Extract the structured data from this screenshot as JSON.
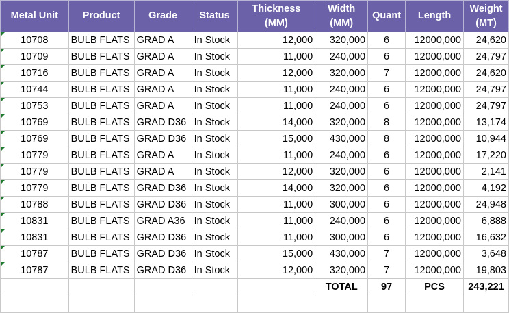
{
  "headers": {
    "metal_unit": "Metal Unit",
    "product": "Product",
    "grade": "Grade",
    "status": "Status",
    "thickness": "Thickness (MM)",
    "width": "Width (MM)",
    "quant": "Quant",
    "length": "Length",
    "weight": "Weight (MT)"
  },
  "rows": [
    {
      "unit": "10708",
      "product": "BULB FLATS",
      "grade": "GRAD A",
      "status": "In Stock",
      "thickness": "12,000",
      "width": "320,000",
      "quant": "6",
      "length": "12000,000",
      "weight": "24,620"
    },
    {
      "unit": "10709",
      "product": "BULB FLATS",
      "grade": "GRAD A",
      "status": "In Stock",
      "thickness": "11,000",
      "width": "240,000",
      "quant": "6",
      "length": "12000,000",
      "weight": "24,797"
    },
    {
      "unit": "10716",
      "product": "BULB FLATS",
      "grade": "GRAD A",
      "status": "In Stock",
      "thickness": "12,000",
      "width": "320,000",
      "quant": "7",
      "length": "12000,000",
      "weight": "24,620"
    },
    {
      "unit": "10744",
      "product": "BULB FLATS",
      "grade": "GRAD A",
      "status": "In Stock",
      "thickness": "11,000",
      "width": "240,000",
      "quant": "6",
      "length": "12000,000",
      "weight": "24,797"
    },
    {
      "unit": "10753",
      "product": "BULB FLATS",
      "grade": "GRAD A",
      "status": "In Stock",
      "thickness": "11,000",
      "width": "240,000",
      "quant": "6",
      "length": "12000,000",
      "weight": "24,797"
    },
    {
      "unit": "10769",
      "product": "BULB FLATS",
      "grade": "GRAD D36",
      "status": "In Stock",
      "thickness": "14,000",
      "width": "320,000",
      "quant": "8",
      "length": "12000,000",
      "weight": "13,174"
    },
    {
      "unit": "10769",
      "product": "BULB FLATS",
      "grade": "GRAD D36",
      "status": "In Stock",
      "thickness": "15,000",
      "width": "430,000",
      "quant": "8",
      "length": "12000,000",
      "weight": "10,944"
    },
    {
      "unit": "10779",
      "product": "BULB FLATS",
      "grade": "GRAD A",
      "status": "In Stock",
      "thickness": "11,000",
      "width": "240,000",
      "quant": "6",
      "length": "12000,000",
      "weight": "17,220"
    },
    {
      "unit": "10779",
      "product": "BULB FLATS",
      "grade": "GRAD A",
      "status": "In Stock",
      "thickness": "12,000",
      "width": "320,000",
      "quant": "6",
      "length": "12000,000",
      "weight": "2,141"
    },
    {
      "unit": "10779",
      "product": "BULB FLATS",
      "grade": "GRAD D36",
      "status": "In Stock",
      "thickness": "14,000",
      "width": "320,000",
      "quant": "6",
      "length": "12000,000",
      "weight": "4,192"
    },
    {
      "unit": "10788",
      "product": "BULB FLATS",
      "grade": "GRAD D36",
      "status": "In Stock",
      "thickness": "11,000",
      "width": "300,000",
      "quant": "6",
      "length": "12000,000",
      "weight": "24,948"
    },
    {
      "unit": "10831",
      "product": "BULB FLATS",
      "grade": "GRAD A36",
      "status": "In Stock",
      "thickness": "11,000",
      "width": "240,000",
      "quant": "6",
      "length": "12000,000",
      "weight": "6,888"
    },
    {
      "unit": "10831",
      "product": "BULB FLATS",
      "grade": "GRAD D36",
      "status": "In Stock",
      "thickness": "11,000",
      "width": "300,000",
      "quant": "6",
      "length": "12000,000",
      "weight": "16,632"
    },
    {
      "unit": "10787",
      "product": "BULB FLATS",
      "grade": "GRAD D36",
      "status": "In Stock",
      "thickness": "15,000",
      "width": "430,000",
      "quant": "7",
      "length": "12000,000",
      "weight": "3,648"
    },
    {
      "unit": "10787",
      "product": "BULB FLATS",
      "grade": "GRAD D36",
      "status": "In Stock",
      "thickness": "12,000",
      "width": "320,000",
      "quant": "7",
      "length": "12000,000",
      "weight": "19,803"
    }
  ],
  "totals": {
    "label": "TOTAL",
    "quant": "97",
    "unit_label": "PCS",
    "weight": "243,221"
  },
  "colors": {
    "header_bg": "#6a61a8",
    "header_text": "#ffffff",
    "flag": "#1f7a2e"
  }
}
